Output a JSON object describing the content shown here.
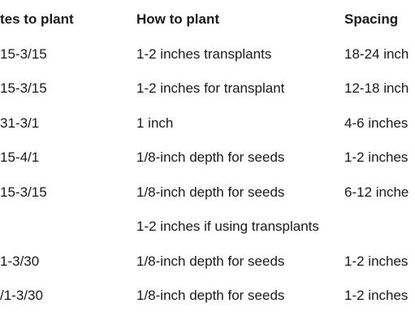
{
  "table": {
    "headers": [
      "tes to plant",
      "How to plant",
      "Spacing"
    ],
    "rows": [
      [
        "15-3/15",
        "1-2 inches transplants",
        "18-24 inch"
      ],
      [
        "15-3/15",
        "1-2 inches for transplant",
        "12-18 inch"
      ],
      [
        "31-3/1",
        "1 inch",
        "4-6 inches"
      ],
      [
        "15-4/1",
        "1/8-inch depth for seeds",
        "1-2 inches"
      ],
      [
        "15-3/15",
        "1/8-inch depth for seeds",
        "6-12 inche"
      ],
      [
        "",
        "1-2 inches if using transplants",
        ""
      ],
      [
        "1-3/30",
        "1/8-inch depth for seeds",
        "1-2 inches"
      ],
      [
        "/1-3/30",
        "1/8-inch depth for seeds",
        "1-2 inches"
      ]
    ]
  }
}
